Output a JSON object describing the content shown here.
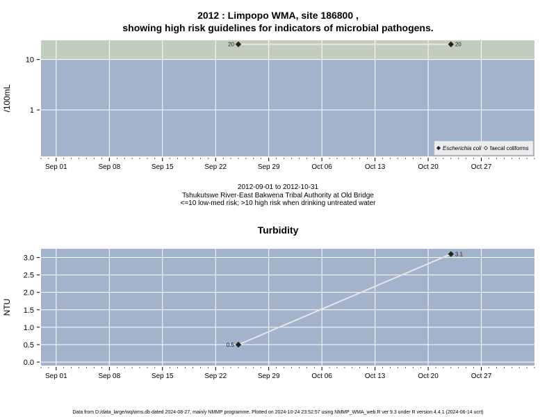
{
  "top_title": {
    "line1": "2012 : Limpopo WMA, site 186800 ,",
    "line2": "showing high risk guidelines for indicators of microbial pathogens."
  },
  "caption": {
    "line1": "2012-09-01 to 2012-10-31",
    "line2": "Tshukutswe River-East Bakwena Tribal Authority at Old Bridge",
    "line3": "<=10 low-med risk; >10 high risk when drinking untreated water"
  },
  "footer": "Data from D:/data_large/wq/wms.db dated 2024-08-27, mainly NMMP programme. Plotted on 2024-10-24 23:52:57 using NMMP_WMA_web.R ver 9.3 under R version 4.4.1 (2024-06-14 ucrt)",
  "colors": {
    "panel_bg": "#a3b3cb",
    "high_risk_band": "#c2ccbf",
    "grid": "#ffffff",
    "series_line": "#e6e6e6",
    "point": "#222222"
  },
  "chart_data": [
    {
      "type": "line",
      "title": "",
      "ylabel": "/100mL",
      "xlabel": "",
      "y_scale": "log",
      "ylim": [
        0.12,
        24
      ],
      "x_ticks": [
        {
          "date": "2012-09-01",
          "label": "Sep 01"
        },
        {
          "date": "2012-09-08",
          "label": "Sep 08"
        },
        {
          "date": "2012-09-15",
          "label": "Sep 15"
        },
        {
          "date": "2012-09-22",
          "label": "Sep 22"
        },
        {
          "date": "2012-09-29",
          "label": "Sep 29"
        },
        {
          "date": "2012-10-06",
          "label": "Oct 06"
        },
        {
          "date": "2012-10-13",
          "label": "Oct 13"
        },
        {
          "date": "2012-10-20",
          "label": "Oct 20"
        },
        {
          "date": "2012-10-27",
          "label": "Oct 27"
        }
      ],
      "y_ticks": [
        {
          "value": 1,
          "label": "1"
        },
        {
          "value": 10,
          "label": "10"
        }
      ],
      "xlim": [
        "2012-08-30",
        "2012-11-03"
      ],
      "guideline": {
        "value": 10,
        "label": "high risk"
      },
      "grid": true,
      "legend_position": "bottom-right",
      "series": [
        {
          "name": "Escherichia coli",
          "marker": "filled-diamond",
          "x": [
            "2012-09-25",
            "2012-10-23"
          ],
          "y": [
            20,
            20
          ],
          "labels": [
            "20",
            "20"
          ]
        },
        {
          "name": "faecal coliforms",
          "marker": "open-diamond",
          "x": [],
          "y": [],
          "labels": []
        }
      ]
    },
    {
      "type": "line",
      "title": "Turbidity",
      "ylabel": "NTU",
      "xlabel": "",
      "ylim": [
        -0.1,
        3.25
      ],
      "x_ticks": [
        {
          "date": "2012-09-01",
          "label": "Sep 01"
        },
        {
          "date": "2012-09-08",
          "label": "Sep 08"
        },
        {
          "date": "2012-09-15",
          "label": "Sep 15"
        },
        {
          "date": "2012-09-22",
          "label": "Sep 22"
        },
        {
          "date": "2012-09-29",
          "label": "Sep 29"
        },
        {
          "date": "2012-10-06",
          "label": "Oct 06"
        },
        {
          "date": "2012-10-13",
          "label": "Oct 13"
        },
        {
          "date": "2012-10-20",
          "label": "Oct 20"
        },
        {
          "date": "2012-10-27",
          "label": "Oct 27"
        }
      ],
      "y_ticks": [
        {
          "value": 0.0,
          "label": "0.0"
        },
        {
          "value": 0.5,
          "label": "0.5"
        },
        {
          "value": 1.0,
          "label": "1.0"
        },
        {
          "value": 1.5,
          "label": "1.5"
        },
        {
          "value": 2.0,
          "label": "2.0"
        },
        {
          "value": 2.5,
          "label": "2.5"
        },
        {
          "value": 3.0,
          "label": "3.0"
        }
      ],
      "xlim": [
        "2012-08-30",
        "2012-11-03"
      ],
      "grid": true,
      "series": [
        {
          "name": "",
          "marker": "filled-diamond",
          "x": [
            "2012-09-25",
            "2012-10-23"
          ],
          "y": [
            0.5,
            3.1
          ],
          "labels": [
            "0.5",
            "3.1"
          ]
        }
      ]
    }
  ]
}
